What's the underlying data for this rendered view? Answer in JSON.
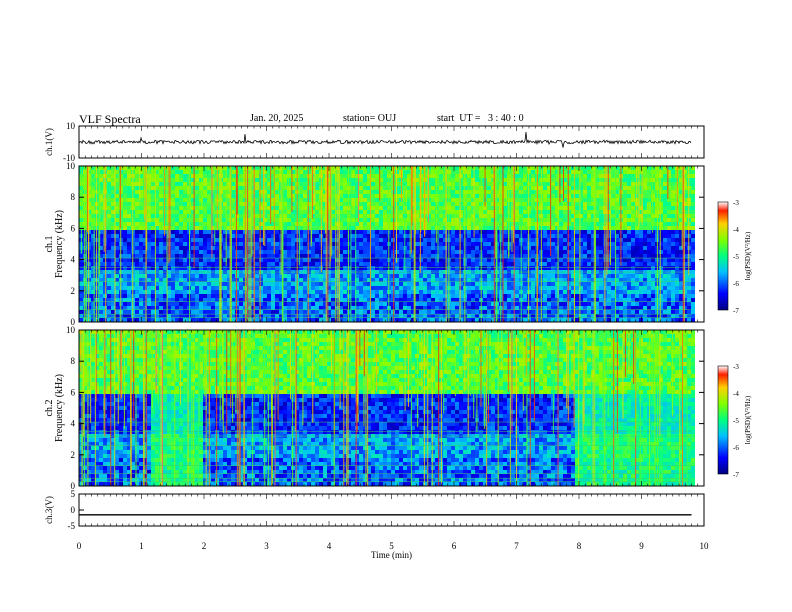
{
  "header": {
    "title": "VLF Spectra",
    "date": "Jan. 20, 2025",
    "station": "station= OUJ",
    "start": "start  UT =   3 : 40 : 0"
  },
  "chart_data": [
    {
      "type": "line",
      "panel": "ch1-waveform",
      "ylabel": "ch.1(V)",
      "ylim": [
        -10,
        10
      ],
      "yticks": [
        "10",
        "-10"
      ],
      "description_series": "noisy waveform centered near 0 V with occasional spikes",
      "x": [
        0,
        9.8
      ],
      "baseline": 0
    },
    {
      "type": "heatmap",
      "panel": "ch1-spectrogram",
      "ylabel": "ch.1\nFrequency (kHz)",
      "ylim": [
        0,
        10
      ],
      "yticks": [
        "0",
        "2",
        "4",
        "6",
        "8",
        "10"
      ],
      "colorbar": {
        "label": "log(PSD)(V²/Hz)",
        "ticks": [
          "-3",
          "-4",
          "-5",
          "-6",
          "-7"
        ],
        "range": [
          -7,
          -3
        ]
      }
    },
    {
      "type": "heatmap",
      "panel": "ch2-spectrogram",
      "ylabel": "ch.2\nFrequency (kHz)",
      "ylim": [
        0,
        10
      ],
      "yticks": [
        "0",
        "2",
        "4",
        "6",
        "8",
        "10"
      ],
      "colorbar": {
        "label": "log(PSD)(V²/Hz)",
        "ticks": [
          "-3",
          "-4",
          "-5",
          "-6",
          "-7"
        ],
        "range": [
          -7,
          -3
        ]
      }
    },
    {
      "type": "line",
      "panel": "ch3-waveform",
      "ylabel": "ch.3(V)",
      "ylim": [
        -5,
        5
      ],
      "yticks": [
        "5",
        "0",
        "-5"
      ],
      "x": [
        0,
        9.8
      ],
      "y": [
        -1.5,
        -1.5
      ]
    }
  ],
  "xaxis": {
    "label": "Time  (min)",
    "xlim": [
      0,
      10
    ],
    "ticks": [
      "0",
      "1",
      "2",
      "3",
      "4",
      "5",
      "6",
      "7",
      "8",
      "9",
      "10"
    ]
  }
}
